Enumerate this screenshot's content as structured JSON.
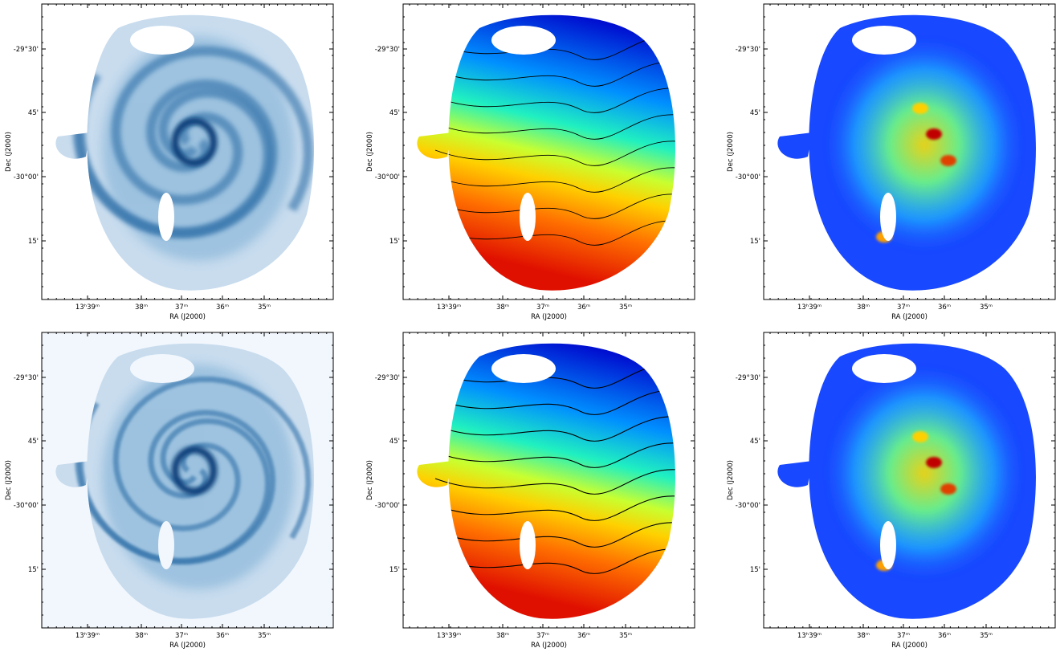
{
  "axes": {
    "x_label": "RA (J2000)",
    "y_label": "Dec (J2000)",
    "x_ticks": [
      "13ʰ39ᵐ",
      "38ᵐ",
      "37ᵐ",
      "36ᵐ",
      "35ᵐ"
    ],
    "y_ticks": [
      "-29°30'",
      "45'",
      "-30°00'",
      "15'"
    ]
  }
}
